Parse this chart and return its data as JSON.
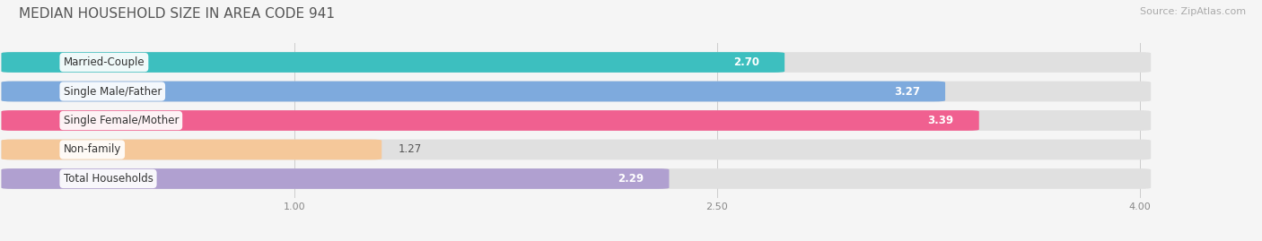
{
  "title": "MEDIAN HOUSEHOLD SIZE IN AREA CODE 941",
  "source": "Source: ZipAtlas.com",
  "categories": [
    "Married-Couple",
    "Single Male/Father",
    "Single Female/Mother",
    "Non-family",
    "Total Households"
  ],
  "values": [
    2.7,
    3.27,
    3.39,
    1.27,
    2.29
  ],
  "bar_colors": [
    "#3dbfbf",
    "#7eaadd",
    "#f06090",
    "#f5c89a",
    "#b0a0d0"
  ],
  "label_colors": [
    "#555555",
    "#555555",
    "#555555",
    "#555555",
    "#555555"
  ],
  "xlim": [
    0,
    4.3
  ],
  "xmin": 0,
  "xmax": 4.0,
  "xticks": [
    1.0,
    2.5,
    4.0
  ],
  "xticklabels": [
    "1.00",
    "2.50",
    "4.00"
  ],
  "background_color": "#f5f5f5",
  "bar_bg_color": "#e0e0e0",
  "title_fontsize": 11,
  "source_fontsize": 8,
  "label_fontsize": 8.5,
  "value_fontsize": 8.5,
  "bar_height": 0.62,
  "value_threshold": 2.5,
  "value_inside_threshold": 2.0
}
